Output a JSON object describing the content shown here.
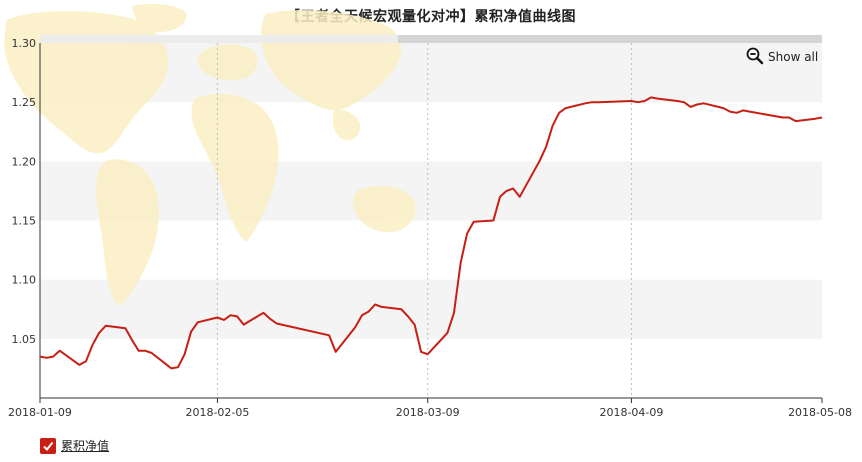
{
  "title": "【王者全天候宏观量化对冲】累积净值曲线图",
  "show_all_label": "Show all",
  "legend_label": "累积净值",
  "colors": {
    "line": "#c81e14",
    "band": "#f4f4f4",
    "scroll_track": "#ececec",
    "scroll_thumb": "#d4d4d4"
  },
  "chart_data": {
    "type": "line",
    "title": "【王者全天候宏观量化对冲】累积净值曲线图",
    "xlabel": "",
    "ylabel": "",
    "ylim": [
      1.0,
      1.3
    ],
    "yticks": [
      "1.05",
      "1.10",
      "1.15",
      "1.20",
      "1.25",
      "1.30"
    ],
    "xticks": [
      "2018-01-09",
      "2018-02-05",
      "2018-03-09",
      "2018-04-09",
      "2018-05-08"
    ],
    "grid": "vertical dotted at x ticks; alternating horizontal bands",
    "legend": "bottom-left",
    "series": [
      {
        "name": "累积净值",
        "x": [
          "2018-01-09",
          "2018-01-10",
          "2018-01-11",
          "2018-01-12",
          "2018-01-15",
          "2018-01-16",
          "2018-01-17",
          "2018-01-18",
          "2018-01-19",
          "2018-01-22",
          "2018-01-23",
          "2018-01-24",
          "2018-01-25",
          "2018-01-26",
          "2018-01-29",
          "2018-01-30",
          "2018-01-31",
          "2018-02-01",
          "2018-02-02",
          "2018-02-05",
          "2018-02-06",
          "2018-02-07",
          "2018-02-08",
          "2018-02-09",
          "2018-02-12",
          "2018-02-13",
          "2018-02-14",
          "2018-02-22",
          "2018-02-23",
          "2018-02-26",
          "2018-02-27",
          "2018-02-28",
          "2018-03-01",
          "2018-03-02",
          "2018-03-05",
          "2018-03-06",
          "2018-03-07",
          "2018-03-08",
          "2018-03-09",
          "2018-03-12",
          "2018-03-13",
          "2018-03-14",
          "2018-03-15",
          "2018-03-16",
          "2018-03-19",
          "2018-03-20",
          "2018-03-21",
          "2018-03-22",
          "2018-03-23",
          "2018-03-26",
          "2018-03-27",
          "2018-03-28",
          "2018-03-29",
          "2018-03-30",
          "2018-04-02",
          "2018-04-03",
          "2018-04-04",
          "2018-04-09",
          "2018-04-10",
          "2018-04-11",
          "2018-04-12",
          "2018-04-13",
          "2018-04-16",
          "2018-04-17",
          "2018-04-18",
          "2018-04-19",
          "2018-04-20",
          "2018-04-23",
          "2018-04-24",
          "2018-04-25",
          "2018-04-26",
          "2018-04-27",
          "2018-05-02",
          "2018-05-03",
          "2018-05-04",
          "2018-05-07",
          "2018-05-08"
        ],
        "values": [
          1.035,
          1.034,
          1.035,
          1.04,
          1.028,
          1.031,
          1.045,
          1.055,
          1.061,
          1.059,
          1.049,
          1.04,
          1.04,
          1.038,
          1.025,
          1.026,
          1.037,
          1.056,
          1.064,
          1.068,
          1.066,
          1.07,
          1.069,
          1.062,
          1.072,
          1.067,
          1.063,
          1.053,
          1.039,
          1.06,
          1.07,
          1.073,
          1.079,
          1.077,
          1.075,
          1.069,
          1.062,
          1.039,
          1.037,
          1.055,
          1.072,
          1.114,
          1.139,
          1.149,
          1.15,
          1.17,
          1.175,
          1.177,
          1.17,
          1.2,
          1.212,
          1.23,
          1.241,
          1.245,
          1.249,
          1.25,
          1.25,
          1.251,
          1.25,
          1.251,
          1.254,
          1.253,
          1.251,
          1.25,
          1.246,
          1.248,
          1.249,
          1.245,
          1.242,
          1.241,
          1.243,
          1.242,
          1.237,
          1.237,
          1.234,
          1.236,
          1.237
        ]
      }
    ]
  }
}
